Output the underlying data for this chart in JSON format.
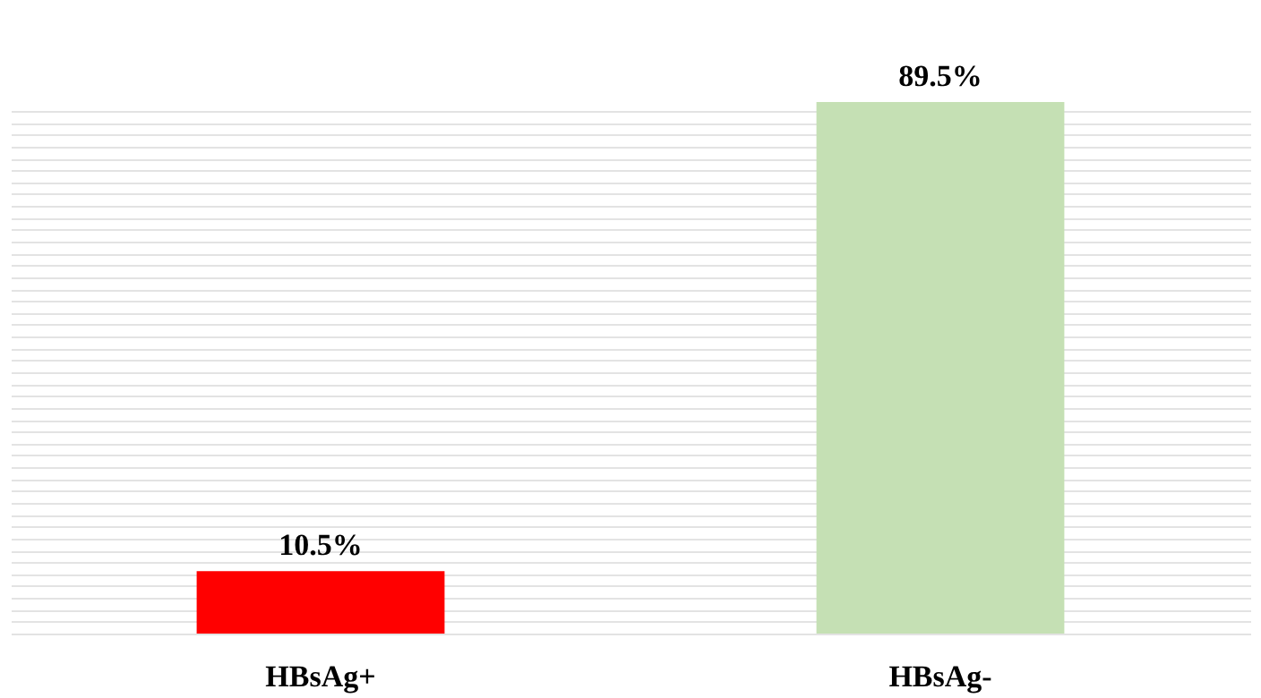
{
  "chart_data": {
    "type": "bar",
    "categories": [
      "HBsAg+",
      "HBsAg-"
    ],
    "values": [
      10.5,
      89.5
    ],
    "colors": [
      "#ff0000",
      "#c5e0b4"
    ],
    "value_labels": [
      "10.5%",
      "89.5%"
    ],
    "grid": "y",
    "tick_labels": "x"
  }
}
